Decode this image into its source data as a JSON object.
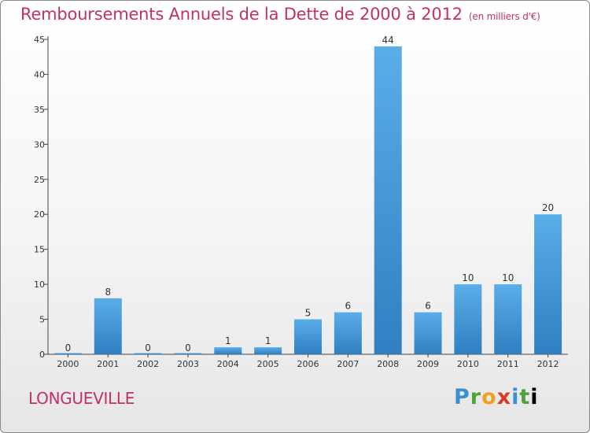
{
  "chart_data": {
    "type": "bar",
    "title": "Remboursements Annuels de la Dette de 2000 à 2012",
    "subtitle": "(en milliers d'€)",
    "categories": [
      "2000",
      "2001",
      "2002",
      "2003",
      "2004",
      "2005",
      "2006",
      "2007",
      "2008",
      "2009",
      "2010",
      "2011",
      "2012"
    ],
    "values": [
      0,
      8,
      0,
      0,
      1,
      1,
      5,
      6,
      44,
      6,
      10,
      10,
      20
    ],
    "ylim": [
      0,
      45
    ],
    "yticks": [
      0,
      5,
      10,
      15,
      20,
      25,
      30,
      35,
      40,
      45
    ],
    "grid": false,
    "bar_color": "#4a9ee0"
  },
  "footer": {
    "commune": "LONGUEVILLE",
    "brand_letters": [
      "P",
      "r",
      "o",
      "x",
      "i",
      "t",
      "i"
    ]
  }
}
